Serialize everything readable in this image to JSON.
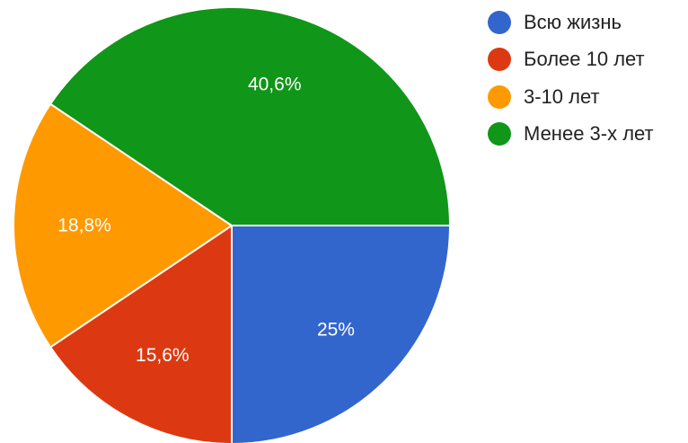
{
  "chart_data": {
    "type": "pie",
    "title": "",
    "categories": [
      "Всю жизнь",
      "Более 10 лет",
      "3-10 лет",
      "Менее 3-х лет"
    ],
    "values": [
      25,
      15.6,
      18.8,
      40.6
    ],
    "value_labels": [
      "25%",
      "15,6%",
      "18,8%",
      "40,6%"
    ],
    "colors": [
      "#3366cc",
      "#dc3912",
      "#ff9900",
      "#109618"
    ],
    "start_angle_deg": 90,
    "direction": "clockwise",
    "legend_placement": "right"
  },
  "legend": {
    "items": [
      {
        "label": "Всю жизнь",
        "color": "#3366cc"
      },
      {
        "label": "Более 10 лет",
        "color": "#dc3912"
      },
      {
        "label": "3-10 лет",
        "color": "#ff9900"
      },
      {
        "label": "Менее 3-х лет",
        "color": "#109618"
      }
    ]
  }
}
